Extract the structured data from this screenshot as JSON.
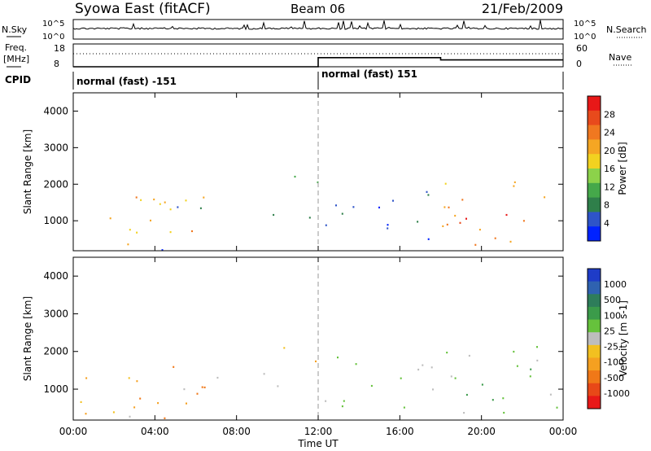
{
  "header": {
    "title": "Syowa East (fitACF)",
    "beam": "Beam 06",
    "date": "21/Feb/2009"
  },
  "noise_panel": {
    "left_label": "N.Sky",
    "right_label": "N.Search",
    "ytick_top": "10^5",
    "ytick_bottom": "10^0"
  },
  "freq_panel": {
    "left_label_line1": "Freq.",
    "left_label_line2": "[MHz]",
    "left_ticks": [
      "18",
      "8"
    ],
    "right_label": "Nave",
    "right_ticks": [
      "60",
      "0"
    ]
  },
  "cpid": {
    "label": "CPID",
    "segments": [
      {
        "text": "normal (fast) -151",
        "start_hour": 0
      },
      {
        "text": "normal (fast) 151",
        "start_hour": 12
      }
    ]
  },
  "power_panel": {
    "ylabel": "Slant Range [km]",
    "colorbar_label": "Power [dB]",
    "colorbar_ticks": [
      "28",
      "24",
      "20",
      "16",
      "12",
      "8",
      "4"
    ],
    "colors": [
      "#0022ff",
      "#2e54c8",
      "#2f7f4a",
      "#45a84a",
      "#8cd24a",
      "#f2d220",
      "#f5a623",
      "#f07820",
      "#e84a1c",
      "#e81818"
    ]
  },
  "velocity_panel": {
    "ylabel": "Slant Range [km]",
    "colorbar_label": "Velocity [m s-1]",
    "colorbar_ticks": [
      "1000",
      "500",
      "100",
      "25",
      "-25",
      "-100",
      "-500",
      "-1000"
    ],
    "colors": [
      "#1e3cc8",
      "#2f62b0",
      "#2e7d5a",
      "#3b9b4a",
      "#66c23c",
      "#bdbdbd",
      "#f2c020",
      "#f5a020",
      "#f07818",
      "#e84818",
      "#e81818"
    ]
  },
  "axes": {
    "xlabel": "Time UT",
    "xticks": [
      "00:00",
      "04:00",
      "08:00",
      "12:00",
      "16:00",
      "20:00",
      "00:00"
    ],
    "yticks": [
      "1000",
      "2000",
      "3000",
      "4000"
    ]
  },
  "chart_data": {
    "type": "heatmap",
    "title": "Syowa East (fitACF)",
    "xlabel": "Time UT",
    "ylabel": "Slant Range [km]",
    "xlim_hours": [
      0,
      24
    ],
    "ylim_km": [
      180,
      4500
    ],
    "power_range_db": [
      0,
      30
    ],
    "velocity_range_ms": [
      -1000,
      1000
    ],
    "frequency": [
      {
        "start_hour": 0,
        "end_hour": 12,
        "mhz": 8
      },
      {
        "start_hour": 12,
        "end_hour": 18,
        "mhz": 12
      },
      {
        "start_hour": 18,
        "end_hour": 24,
        "mhz": 11
      }
    ],
    "scatter_regions": [
      {
        "t0": 0.2,
        "t1": 6.0,
        "r0": 250,
        "r1": 1700,
        "power": 18,
        "velocity": -300
      },
      {
        "t0": 2.0,
        "t1": 6.5,
        "r0": 600,
        "r1": 1800,
        "power": 20,
        "velocity": -500
      },
      {
        "t0": 4.0,
        "t1": 12.0,
        "r0": 1000,
        "r1": 1500,
        "power": 6,
        "velocity": 25
      },
      {
        "t0": 0.0,
        "t1": 9.0,
        "r0": 200,
        "r1": 300,
        "power": 5,
        "velocity": -100
      },
      {
        "t0": 10.0,
        "t1": 12.0,
        "r0": 1500,
        "r1": 2300,
        "power": 10,
        "velocity": -300
      },
      {
        "t0": 12.2,
        "t1": 18.0,
        "r0": 500,
        "r1": 2300,
        "power": 5,
        "velocity": 100
      },
      {
        "t0": 18.0,
        "t1": 24.0,
        "r0": 250,
        "r1": 2200,
        "power": 20,
        "velocity": 100
      },
      {
        "t0": 18.5,
        "t1": 22.5,
        "r0": 400,
        "r1": 1600,
        "power": 26,
        "velocity": 300
      }
    ]
  }
}
